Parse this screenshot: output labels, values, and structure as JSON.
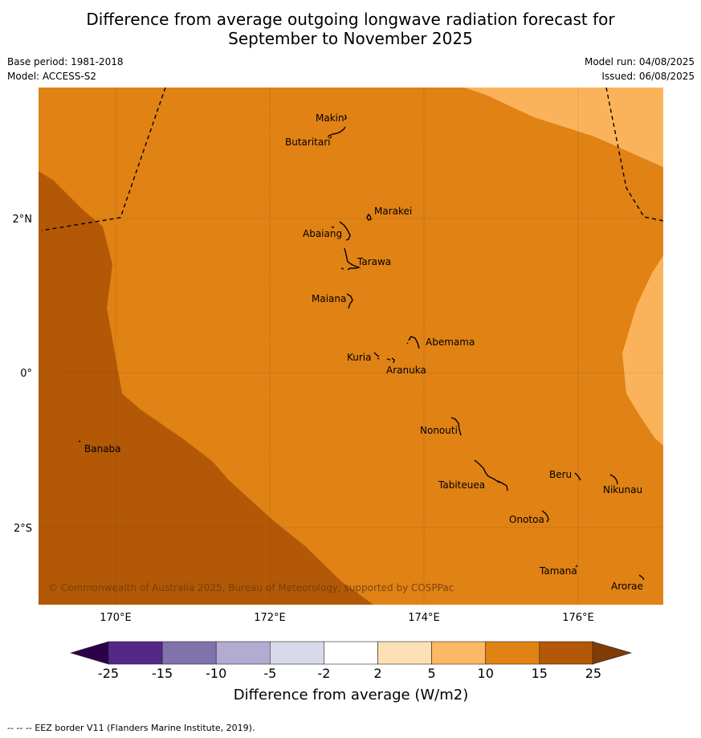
{
  "title_line1": "Difference from average outgoing longwave radiation forecast for",
  "title_line2": "September to November 2025",
  "base_period": "Base period: 1981-2018",
  "model": "Model: ACCESS-S2",
  "model_run": "Model run: 04/08/2025",
  "issued": "Issued: 06/08/2025",
  "copyright": "© Commonwealth of Australia 2025, Bureau of Meteorology, supported by COSPPac",
  "footer": "--  --  -- EEZ border V11 (Flanders Marine Institute, 2019).",
  "colors": {
    "band_5_10": "#FBB35B",
    "band_10_15": "#E08214",
    "band_15_25": "#B35806",
    "over_25": "#7F3B08",
    "under_neg25": "#2D004B"
  },
  "map": {
    "lat_labels": [
      "2°N",
      "0°",
      "2°S"
    ],
    "lon_labels": [
      "170°E",
      "172°E",
      "174°E",
      "176°E"
    ],
    "places": [
      {
        "name": "Makin"
      },
      {
        "name": "Butaritari"
      },
      {
        "name": "Marakei"
      },
      {
        "name": "Abaiang"
      },
      {
        "name": "Tarawa"
      },
      {
        "name": "Maiana"
      },
      {
        "name": "Abemama"
      },
      {
        "name": "Kuria"
      },
      {
        "name": "Aranuka"
      },
      {
        "name": "Nonouti"
      },
      {
        "name": "Banaba"
      },
      {
        "name": "Beru"
      },
      {
        "name": "Tabiteuea"
      },
      {
        "name": "Nikunau"
      },
      {
        "name": "Onotoa"
      },
      {
        "name": "Tamana"
      },
      {
        "name": "Arorae"
      }
    ]
  },
  "colorbar": {
    "label": "Difference from average (W/m2)",
    "ticks": [
      "-25",
      "-15",
      "-10",
      "-5",
      "-2",
      "2",
      "5",
      "10",
      "15",
      "25"
    ],
    "colors": [
      "#542788",
      "#8073AC",
      "#B2ABD2",
      "#D8DAEB",
      "#FFFFFF",
      "#FEE0B6",
      "#FDB863",
      "#E08214",
      "#B35806"
    ]
  }
}
